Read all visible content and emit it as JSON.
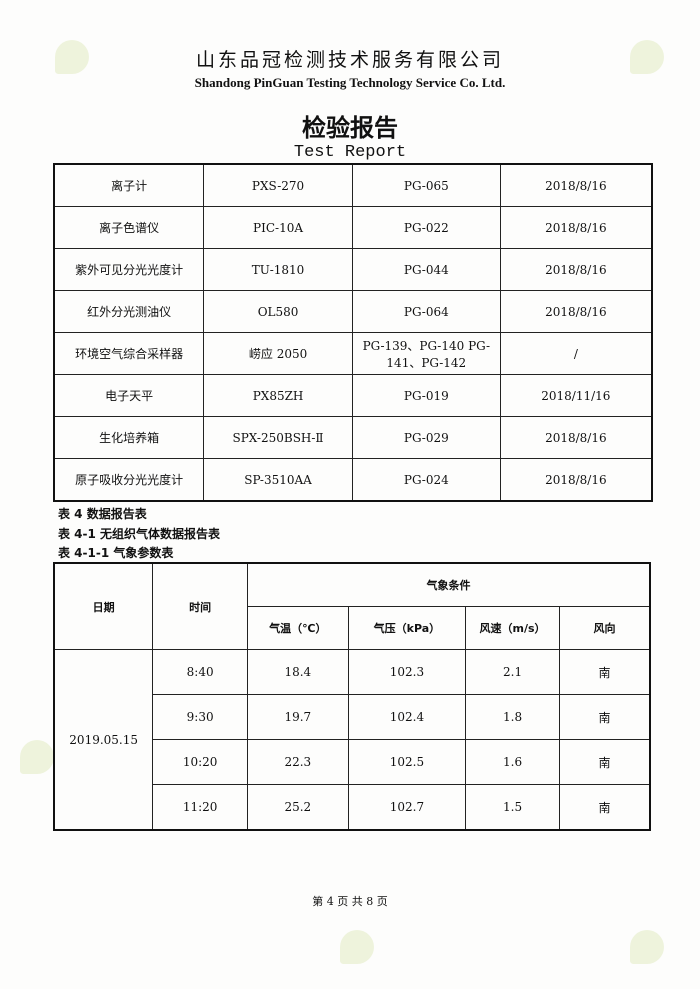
{
  "header": {
    "company_cn": "山东品冠检测技术服务有限公司",
    "company_en": "Shandong PinGuan Testing Technology Service Co. Ltd.",
    "title_cn": "检验报告",
    "title_en": "Test Report"
  },
  "equipment": [
    [
      "离子计",
      "PXS-270",
      "PG-065",
      "2018/8/16"
    ],
    [
      "离子色谱仪",
      "PIC-10A",
      "PG-022",
      "2018/8/16"
    ],
    [
      "紫外可见分光光度计",
      "TU-1810",
      "PG-044",
      "2018/8/16"
    ],
    [
      "红外分光测油仪",
      "OL580",
      "PG-064",
      "2018/8/16"
    ],
    [
      "环境空气综合采样器",
      "崂应 2050",
      "PG-139、PG-140 PG-141、PG-142",
      "/"
    ],
    [
      "电子天平",
      "PX85ZH",
      "PG-019",
      "2018/11/16"
    ],
    [
      "生化培养箱",
      "SPX-250BSH-Ⅱ",
      "PG-029",
      "2018/8/16"
    ],
    [
      "原子吸收分光光度计",
      "SP-3510AA",
      "PG-024",
      "2018/8/16"
    ]
  ],
  "captions": [
    "表 4 数据报告表",
    "表 4-1 无组织气体数据报告表",
    "表 4-1-1 气象参数表"
  ],
  "weather": {
    "headers": {
      "date": "日期",
      "time": "时间",
      "conditions": "气象条件",
      "temp": "气温（℃）",
      "pressure": "气压（kPa）",
      "wind_speed": "风速（m/s）",
      "wind_dir": "风向"
    },
    "date": "2019.05.15",
    "rows": [
      [
        "8:40",
        "18.4",
        "102.3",
        "2.1",
        "南"
      ],
      [
        "9:30",
        "19.7",
        "102.4",
        "1.8",
        "南"
      ],
      [
        "10:20",
        "22.3",
        "102.5",
        "1.6",
        "南"
      ],
      [
        "11:20",
        "25.2",
        "102.7",
        "1.5",
        "南"
      ]
    ]
  },
  "footer": "第 4 页 共 8 页"
}
